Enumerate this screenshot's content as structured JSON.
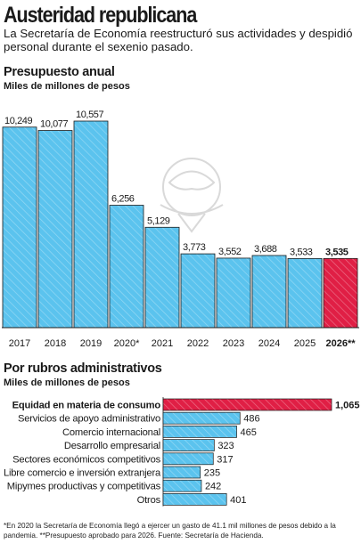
{
  "header": {
    "title": "Austeridad republicana",
    "subtitle": "La Secretaría de Economía reestructuró sus actividades y despidió personal durante el sexenio pasado."
  },
  "colors": {
    "bar": "#5bc3ee",
    "highlight": "#e01f45",
    "stroke": "#1a1a1a"
  },
  "chart_data": [
    {
      "type": "bar",
      "title": "Presupuesto anual",
      "subtitle": "Miles de millones de pesos",
      "categories": [
        "2017",
        "2018",
        "2019",
        "2020*",
        "2021",
        "2022",
        "2023",
        "2024",
        "2025",
        "2026**"
      ],
      "values": [
        10249,
        10077,
        10557,
        6256,
        5129,
        3773,
        3552,
        3688,
        3533,
        3535
      ],
      "labels": [
        "10,249",
        "10,077",
        "10,557",
        "6,256",
        "5,129",
        "3,773",
        "3,552",
        "3,688",
        "3,533",
        "3,535"
      ],
      "highlight_index": 9,
      "grid": false
    },
    {
      "type": "bar",
      "orientation": "horizontal",
      "title": "Por rubros administrativos",
      "subtitle": "Miles de millones de pesos",
      "categories": [
        "Equidad en materia de consumo",
        "Servicios de apoyo administrativo",
        "Comercio internacional",
        "Desarrollo empresarial",
        "Sectores económicos competitivos",
        "Libre comercio e inversión extranjera",
        "Mipymes productivas y competitivas",
        "Otros"
      ],
      "values": [
        1065,
        486,
        465,
        323,
        317,
        235,
        242,
        401
      ],
      "labels": [
        "1,065",
        "486",
        "465",
        "323",
        "317",
        "235",
        "242",
        "401"
      ],
      "highlight_index": 0,
      "grid": false
    }
  ],
  "footnote": "*En 2020 la Secretaría de Economía llegó a ejercer un gasto de 41.1 mil millones de pesos debido a la pandemia. **Presupuesto aprobado para 2026. Fuente: Secretaría de Hacienda."
}
